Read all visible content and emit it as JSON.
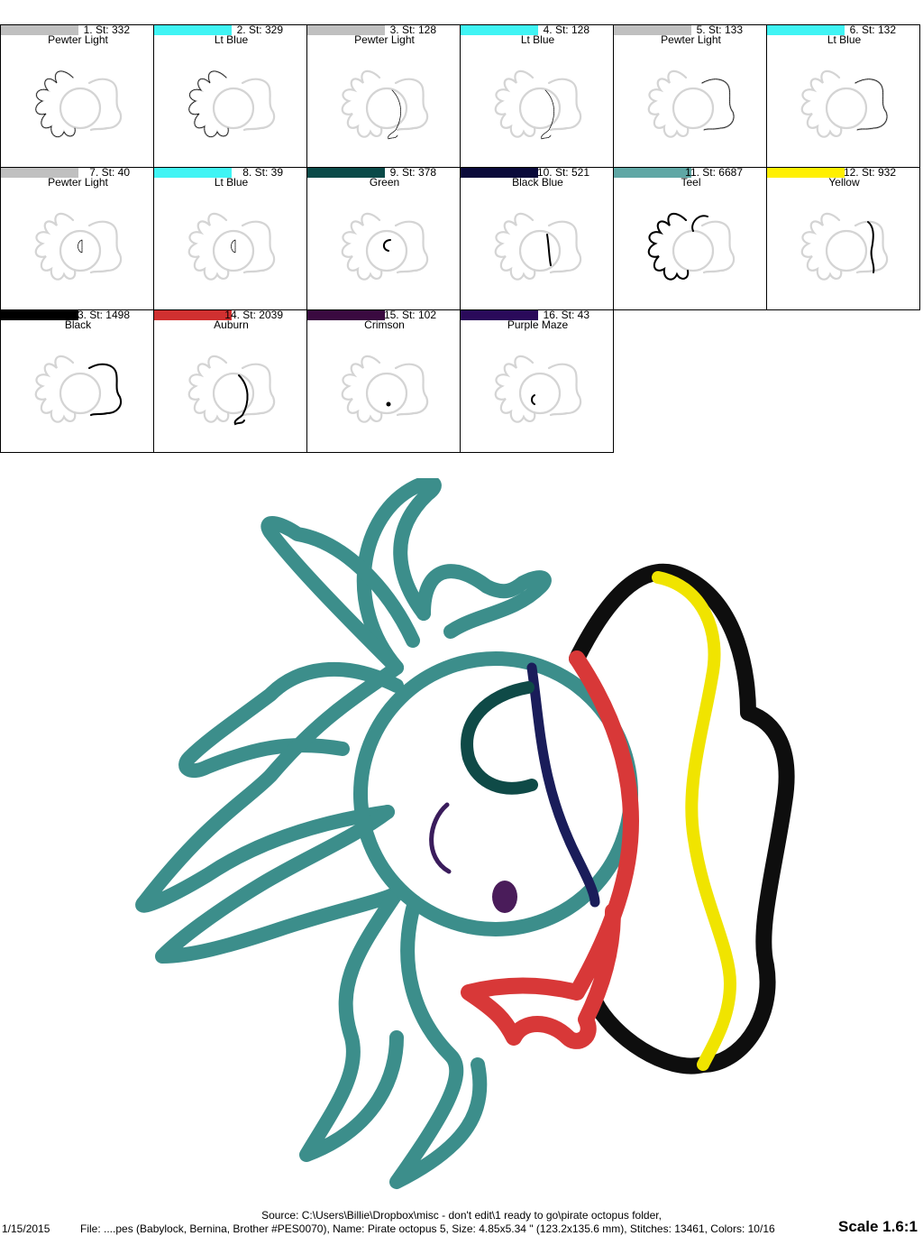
{
  "colors": {
    "gray_outline": "#d4d4d4",
    "stitch_teal": "#4f9f9c",
    "stitch_black": "#111111",
    "stitch_yellow": "#f2e600",
    "stitch_red": "#d93a3a",
    "stitch_navy": "#1b1f5a",
    "stitch_green": "#0f4a47",
    "stitch_purple": "#4a1c5a"
  },
  "steps": [
    {
      "num": "1. St: 332",
      "name": "Pewter Light",
      "swatch": "#c0c0c0",
      "icon": "tentacles-outline"
    },
    {
      "num": "2. St: 329",
      "name": "Lt Blue",
      "swatch": "#40f4f4",
      "icon": "tentacles-outline"
    },
    {
      "num": "3. St: 128",
      "name": "Pewter Light",
      "swatch": "#c0c0c0",
      "icon": "bandana-outline"
    },
    {
      "num": "4. St: 128",
      "name": "Lt Blue",
      "swatch": "#40f4f4",
      "icon": "bandana-outline"
    },
    {
      "num": "5. St: 133",
      "name": "Pewter Light",
      "swatch": "#c0c0c0",
      "icon": "hat-outline"
    },
    {
      "num": "6. St: 132",
      "name": "Lt Blue",
      "swatch": "#40f4f4",
      "icon": "hat-outline"
    },
    {
      "num": "7. St: 40",
      "name": "Pewter Light",
      "swatch": "#c0c0c0",
      "icon": "eyepatch-outline"
    },
    {
      "num": "8. St: 39",
      "name": "Lt Blue",
      "swatch": "#40f4f4",
      "icon": "eyepatch-outline"
    },
    {
      "num": "9. St: 378",
      "name": "Green",
      "swatch": "#0a4a48",
      "icon": "eyepatch"
    },
    {
      "num": "10. St: 521",
      "name": "Black Blue",
      "swatch": "#0a0a3a",
      "icon": "patch-strap"
    },
    {
      "num": "11. St: 6687",
      "name": "Teel",
      "swatch": "#5fa7a5",
      "icon": "tentacles"
    },
    {
      "num": "12. St: 932",
      "name": "Yellow",
      "swatch": "#fff000",
      "icon": "hat-band"
    },
    {
      "num": "13. St: 1498",
      "name": "Black",
      "swatch": "#000000",
      "icon": "hat-brim"
    },
    {
      "num": "14. St: 2039",
      "name": "Auburn",
      "swatch": "#d03030",
      "icon": "bandana"
    },
    {
      "num": "15. St: 102",
      "name": "Crimson",
      "swatch": "#3a0a40",
      "icon": "nose"
    },
    {
      "num": "16. St: 43",
      "name": "Purple Maze",
      "swatch": "#2a0a5a",
      "icon": "mouth"
    }
  ],
  "footer": {
    "source": "Source: C:\\Users\\Billie\\Dropbox\\misc - don't edit\\1 ready to go\\pirate octopus folder,",
    "date": "1/15/2015",
    "file": "File: ....pes (Babylock, Bernina, Brother #PES0070), Name: Pirate octopus 5, Size: 4.85x5.34 \" (123.2x135.6 mm), Stitches: 13461, Colors: 10/16",
    "scale": "Scale 1.6:1"
  }
}
